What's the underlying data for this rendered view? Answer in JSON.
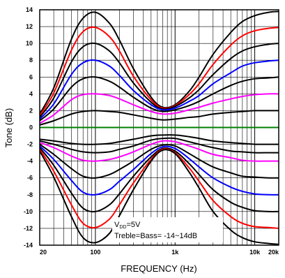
{
  "chart_data": {
    "type": "line",
    "xlabel": "FREQUENCY (Hz)",
    "ylabel": "Tone (dB)",
    "x_scale": "log",
    "xlim": [
      20,
      20000
    ],
    "ylim": [
      -14,
      14
    ],
    "grid": true,
    "x_tick_values": [
      20,
      100,
      1000,
      10000,
      20000
    ],
    "x_tick_labels": [
      "20",
      "100",
      "1k",
      "10k",
      "20k"
    ],
    "y_ticks": [
      14,
      12,
      10,
      8,
      6,
      4,
      2,
      0,
      -2,
      -4,
      -6,
      -8,
      -10,
      -12,
      -14
    ],
    "annotation": {
      "line1_main": "V",
      "line1_sub": "DD",
      "line1_rest": "=5V",
      "line2": "Treble=Bass= -14~14dB"
    },
    "x": [
      20,
      30,
      50,
      70,
      100,
      150,
      200,
      300,
      500,
      700,
      1000,
      1500,
      2000,
      3000,
      5000,
      7000,
      10000,
      15000,
      20000
    ],
    "series": [
      {
        "color": "#000000",
        "values": [
          1.6,
          4.7,
          10.5,
          13.0,
          13.7,
          12.4,
          10.4,
          7.0,
          3.6,
          2.4,
          2.7,
          4.3,
          6.0,
          8.7,
          11.3,
          12.6,
          13.3,
          13.7,
          13.8
        ]
      },
      {
        "color": "#ff0000",
        "values": [
          1.4,
          4.1,
          9.2,
          11.4,
          11.9,
          10.8,
          9.1,
          6.1,
          3.3,
          2.3,
          2.6,
          3.9,
          5.2,
          7.5,
          9.8,
          10.9,
          11.5,
          11.8,
          11.9
        ]
      },
      {
        "color": "#000000",
        "values": [
          1.2,
          3.5,
          7.8,
          9.6,
          10.0,
          9.1,
          7.7,
          5.3,
          3.0,
          2.2,
          2.5,
          3.5,
          4.5,
          6.3,
          8.2,
          9.1,
          9.6,
          9.9,
          10.0
        ]
      },
      {
        "color": "#0000ff",
        "values": [
          1.0,
          2.8,
          6.3,
          7.7,
          8.0,
          7.3,
          6.2,
          4.4,
          2.7,
          2.1,
          2.3,
          3.1,
          3.8,
          5.2,
          6.5,
          7.3,
          7.7,
          7.9,
          8.0
        ]
      },
      {
        "color": "#000000",
        "values": [
          0.8,
          2.2,
          4.8,
          5.8,
          6.0,
          5.5,
          4.8,
          3.6,
          2.3,
          1.9,
          2.1,
          2.6,
          3.1,
          4.0,
          5.0,
          5.5,
          5.8,
          5.9,
          6.0
        ]
      },
      {
        "color": "#ff00ff",
        "values": [
          0.5,
          1.5,
          3.3,
          3.9,
          4.0,
          3.8,
          3.4,
          2.7,
          1.9,
          1.6,
          1.7,
          2.1,
          2.4,
          2.9,
          3.4,
          3.7,
          3.9,
          4.0,
          4.0
        ]
      },
      {
        "color": "#000000",
        "values": [
          0.3,
          0.8,
          1.6,
          1.9,
          2.0,
          1.9,
          1.8,
          1.5,
          1.1,
          0.9,
          1.0,
          1.2,
          1.3,
          1.6,
          1.8,
          1.9,
          2.0,
          2.0,
          2.0
        ]
      },
      {
        "color": "#008000",
        "values": [
          0,
          0,
          0,
          0,
          0,
          0,
          0,
          0,
          0,
          0,
          0,
          0,
          0,
          0,
          0,
          0,
          0,
          0,
          0
        ]
      },
      {
        "color": "#000000",
        "values": [
          -1.4,
          -1.6,
          -1.9,
          -2.0,
          -2.0,
          -1.9,
          -1.7,
          -1.4,
          -1.0,
          -0.9,
          -0.9,
          -1.1,
          -1.3,
          -1.6,
          -1.8,
          -1.9,
          -2.0,
          -2.0,
          -2.0
        ]
      },
      {
        "color": "#000000",
        "values": [
          -1.6,
          -2.0,
          -2.6,
          -2.9,
          -3.0,
          -2.9,
          -2.6,
          -2.2,
          -1.5,
          -1.3,
          -1.3,
          -1.7,
          -2.0,
          -2.4,
          -2.8,
          -2.9,
          -3.0,
          -3.0,
          -3.0
        ]
      },
      {
        "color": "#ff00ff",
        "values": [
          -1.8,
          -2.4,
          -3.4,
          -3.9,
          -4.0,
          -3.8,
          -3.5,
          -2.9,
          -2.0,
          -1.6,
          -1.7,
          -2.2,
          -2.6,
          -3.2,
          -3.6,
          -3.9,
          -4.0,
          -4.0,
          -4.0
        ]
      },
      {
        "color": "#000000",
        "values": [
          -2.0,
          -3.2,
          -4.9,
          -5.8,
          -6.0,
          -5.6,
          -5.0,
          -4.0,
          -2.6,
          -2.1,
          -2.2,
          -3.1,
          -3.8,
          -4.7,
          -5.4,
          -5.8,
          -5.9,
          -6.0,
          -6.0
        ]
      },
      {
        "color": "#0000ff",
        "values": [
          -2.2,
          -3.8,
          -6.3,
          -7.7,
          -8.0,
          -7.4,
          -6.4,
          -5.0,
          -3.1,
          -2.3,
          -2.5,
          -3.7,
          -4.7,
          -6.0,
          -7.1,
          -7.6,
          -7.9,
          -8.0,
          -8.0
        ]
      },
      {
        "color": "#000000",
        "values": [
          -2.4,
          -4.5,
          -7.8,
          -9.6,
          -10.0,
          -9.2,
          -7.9,
          -5.8,
          -3.5,
          -2.5,
          -2.8,
          -4.3,
          -5.6,
          -7.4,
          -8.9,
          -9.5,
          -9.9,
          -10.0,
          -10.0
        ]
      },
      {
        "color": "#ff0000",
        "values": [
          -2.6,
          -5.2,
          -9.2,
          -11.4,
          -11.9,
          -10.9,
          -9.2,
          -6.6,
          -3.8,
          -2.6,
          -3.0,
          -4.8,
          -6.4,
          -8.7,
          -10.6,
          -11.4,
          -11.8,
          -11.9,
          -12.0
        ]
      },
      {
        "color": "#000000",
        "values": [
          -2.8,
          -5.9,
          -10.6,
          -13.1,
          -13.7,
          -12.6,
          -10.5,
          -7.4,
          -4.0,
          -2.7,
          -3.1,
          -5.3,
          -7.2,
          -10.0,
          -12.2,
          -13.1,
          -13.6,
          -13.8,
          -13.9
        ]
      }
    ]
  }
}
